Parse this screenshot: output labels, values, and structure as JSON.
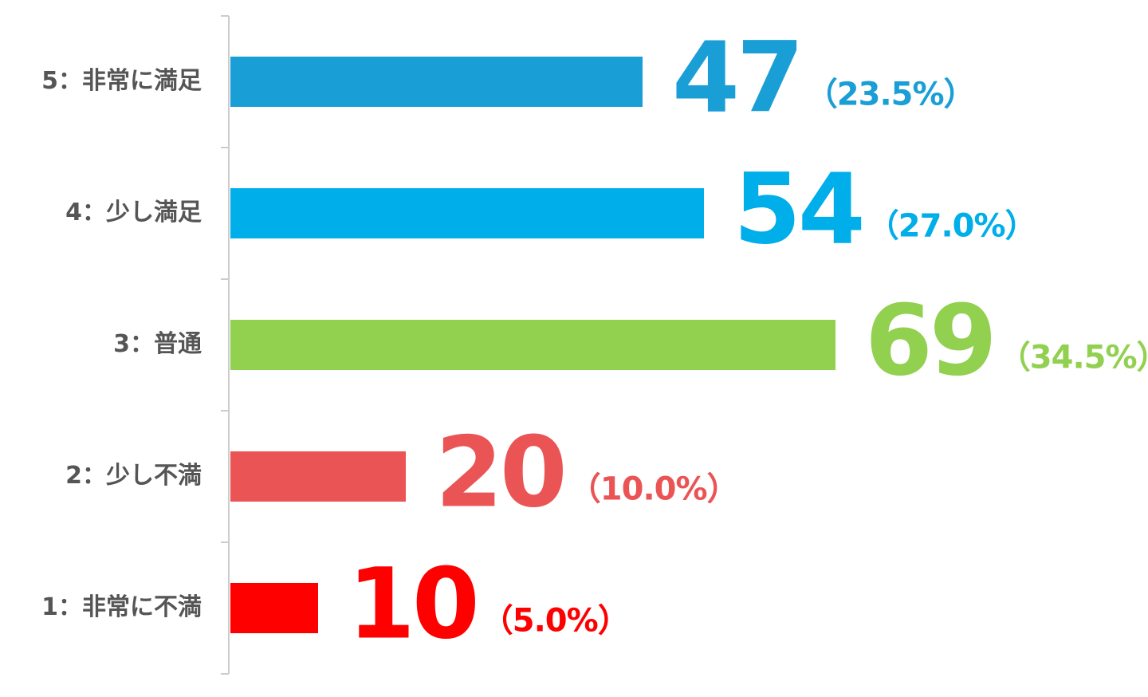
{
  "chart_data": {
    "type": "hbar",
    "categories": [
      "5：非常に満足",
      "4：少し満足",
      "3：普通",
      "2：少し不満",
      "1：非常に不満"
    ],
    "values": [
      47,
      54,
      69,
      20,
      10
    ],
    "percent_labels": [
      "（23.5%）",
      "（27.0%）",
      "（34.5%）",
      "（10.0%）",
      "（5.0%）"
    ],
    "colors": [
      "#1a9ed6",
      "#00aeea",
      "#92d050",
      "#eb5455",
      "#ff0000"
    ]
  }
}
